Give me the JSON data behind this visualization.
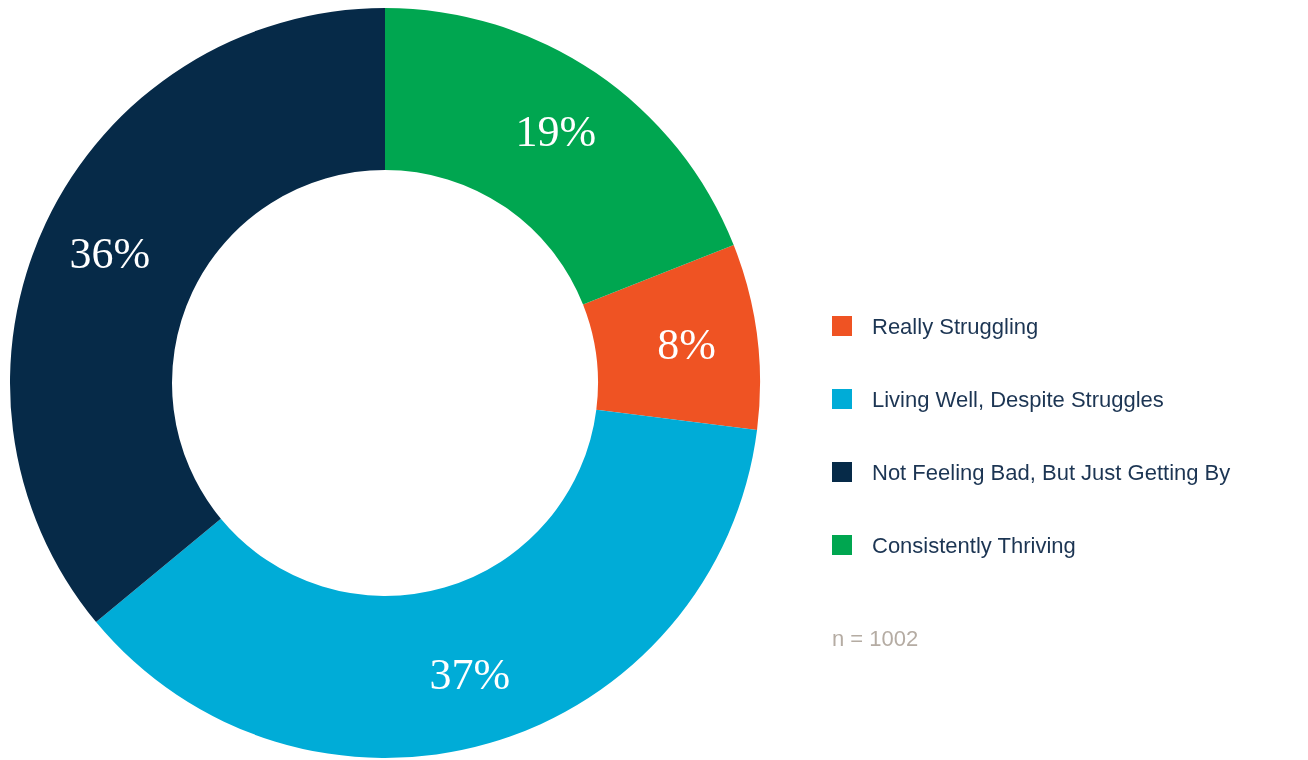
{
  "chart_data": {
    "type": "donut",
    "categories": [
      "Really Struggling",
      "Living Well, Despite Struggles",
      "Not Feeling Bad, But Just Getting By",
      "Consistently Thriving"
    ],
    "values": [
      8,
      37,
      36,
      19
    ],
    "colors": [
      "#ef5323",
      "#00acd7",
      "#062a48",
      "#00a650"
    ],
    "value_labels": [
      "8%",
      "37%",
      "36%",
      "19%"
    ],
    "legend": "right",
    "annotations": [
      "n = 1002"
    ]
  }
}
